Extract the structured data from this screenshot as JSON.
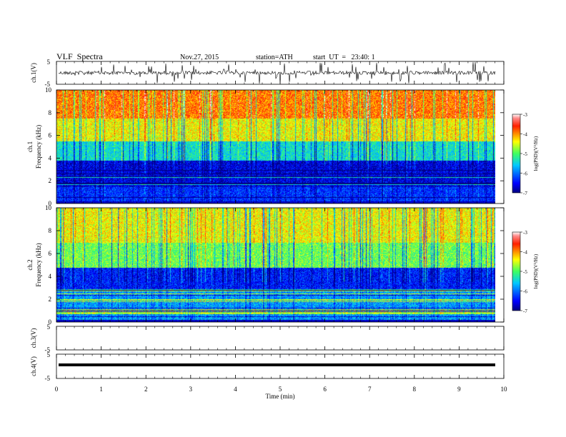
{
  "header": {
    "title": "VLF  Spectra",
    "date": "Nov.27, 2015",
    "station": "station=ATH",
    "start_ut": "start  UT  =   23:40: 1"
  },
  "chart_data": [
    {
      "type": "line",
      "panel": "ch1-waveform",
      "ylabel": "ch.1(V)",
      "yticks": [
        "5",
        "-5"
      ],
      "ylim": [
        -5,
        5
      ],
      "description_values": "noisy signal centered near 0 V with spikes",
      "xlim": [
        0,
        10
      ]
    },
    {
      "type": "heatmap",
      "panel": "ch1-spectrogram",
      "ylabel": "ch.1\nFrequency  (kHz)",
      "ylabel_line1": "ch.1",
      "ylabel_line2": "Frequency  (kHz)",
      "ylim": [
        0,
        10
      ],
      "yticks": [
        "0",
        "2",
        "4",
        "6",
        "8",
        "10"
      ],
      "xlim": [
        0,
        9.8
      ],
      "colorbar": {
        "label": "log(PSD)(V²/Hz)",
        "range": [
          -7,
          -3
        ],
        "ticks": [
          "-3",
          "-4",
          "-5",
          "-6",
          "-7"
        ]
      },
      "bands_khz_log_psd": [
        {
          "f_from": 0,
          "f_to": 1.5,
          "level": -6.3
        },
        {
          "f_from": 1.5,
          "f_to": 3.8,
          "level": -6.6
        },
        {
          "f_from": 3.8,
          "f_to": 5.5,
          "level": -5.4
        },
        {
          "f_from": 5.5,
          "f_to": 7.5,
          "level": -4.4
        },
        {
          "f_from": 7.5,
          "f_to": 10,
          "level": -3.9
        }
      ]
    },
    {
      "type": "heatmap",
      "panel": "ch2-spectrogram",
      "ylabel_line1": "ch.2",
      "ylabel_line2": "Frequency  (kHz)",
      "ylim": [
        0,
        10
      ],
      "yticks": [
        "0",
        "2",
        "4",
        "6",
        "8",
        "10"
      ],
      "xlim": [
        0,
        9.8
      ],
      "colorbar": {
        "label": "log(PSD)(V²/Hz)",
        "range": [
          -7,
          -3
        ],
        "ticks": [
          "-3",
          "-4",
          "-5",
          "-6",
          "-7"
        ]
      },
      "bands_khz_log_psd": [
        {
          "f_from": 0,
          "f_to": 2.8,
          "level": -5.8
        },
        {
          "f_from": 2.8,
          "f_to": 4.8,
          "level": -6.4
        },
        {
          "f_from": 4.8,
          "f_to": 7.0,
          "level": -4.9
        },
        {
          "f_from": 7.0,
          "f_to": 10,
          "level": -4.4
        }
      ]
    },
    {
      "type": "line",
      "panel": "ch3-waveform",
      "ylabel": "ch.3(V)",
      "yticks": [
        "5",
        "-5"
      ],
      "ylim": [
        -5,
        5
      ],
      "xlim": [
        0,
        10
      ]
    },
    {
      "type": "line",
      "panel": "ch4-waveform",
      "ylabel": "ch.4(V)",
      "yticks": [
        "5",
        "-5"
      ],
      "ylim": [
        -5,
        5
      ],
      "xlim": [
        0,
        10
      ],
      "level_v": 0
    }
  ],
  "xaxis": {
    "label": "Time  (min)",
    "ticks": [
      "0",
      "1",
      "2",
      "3",
      "4",
      "5",
      "6",
      "7",
      "8",
      "9",
      "10"
    ],
    "range": [
      0,
      10
    ]
  },
  "colors": {
    "jet_low": "#00007f",
    "jet_high": "#7f0000",
    "frame": "#000000"
  }
}
